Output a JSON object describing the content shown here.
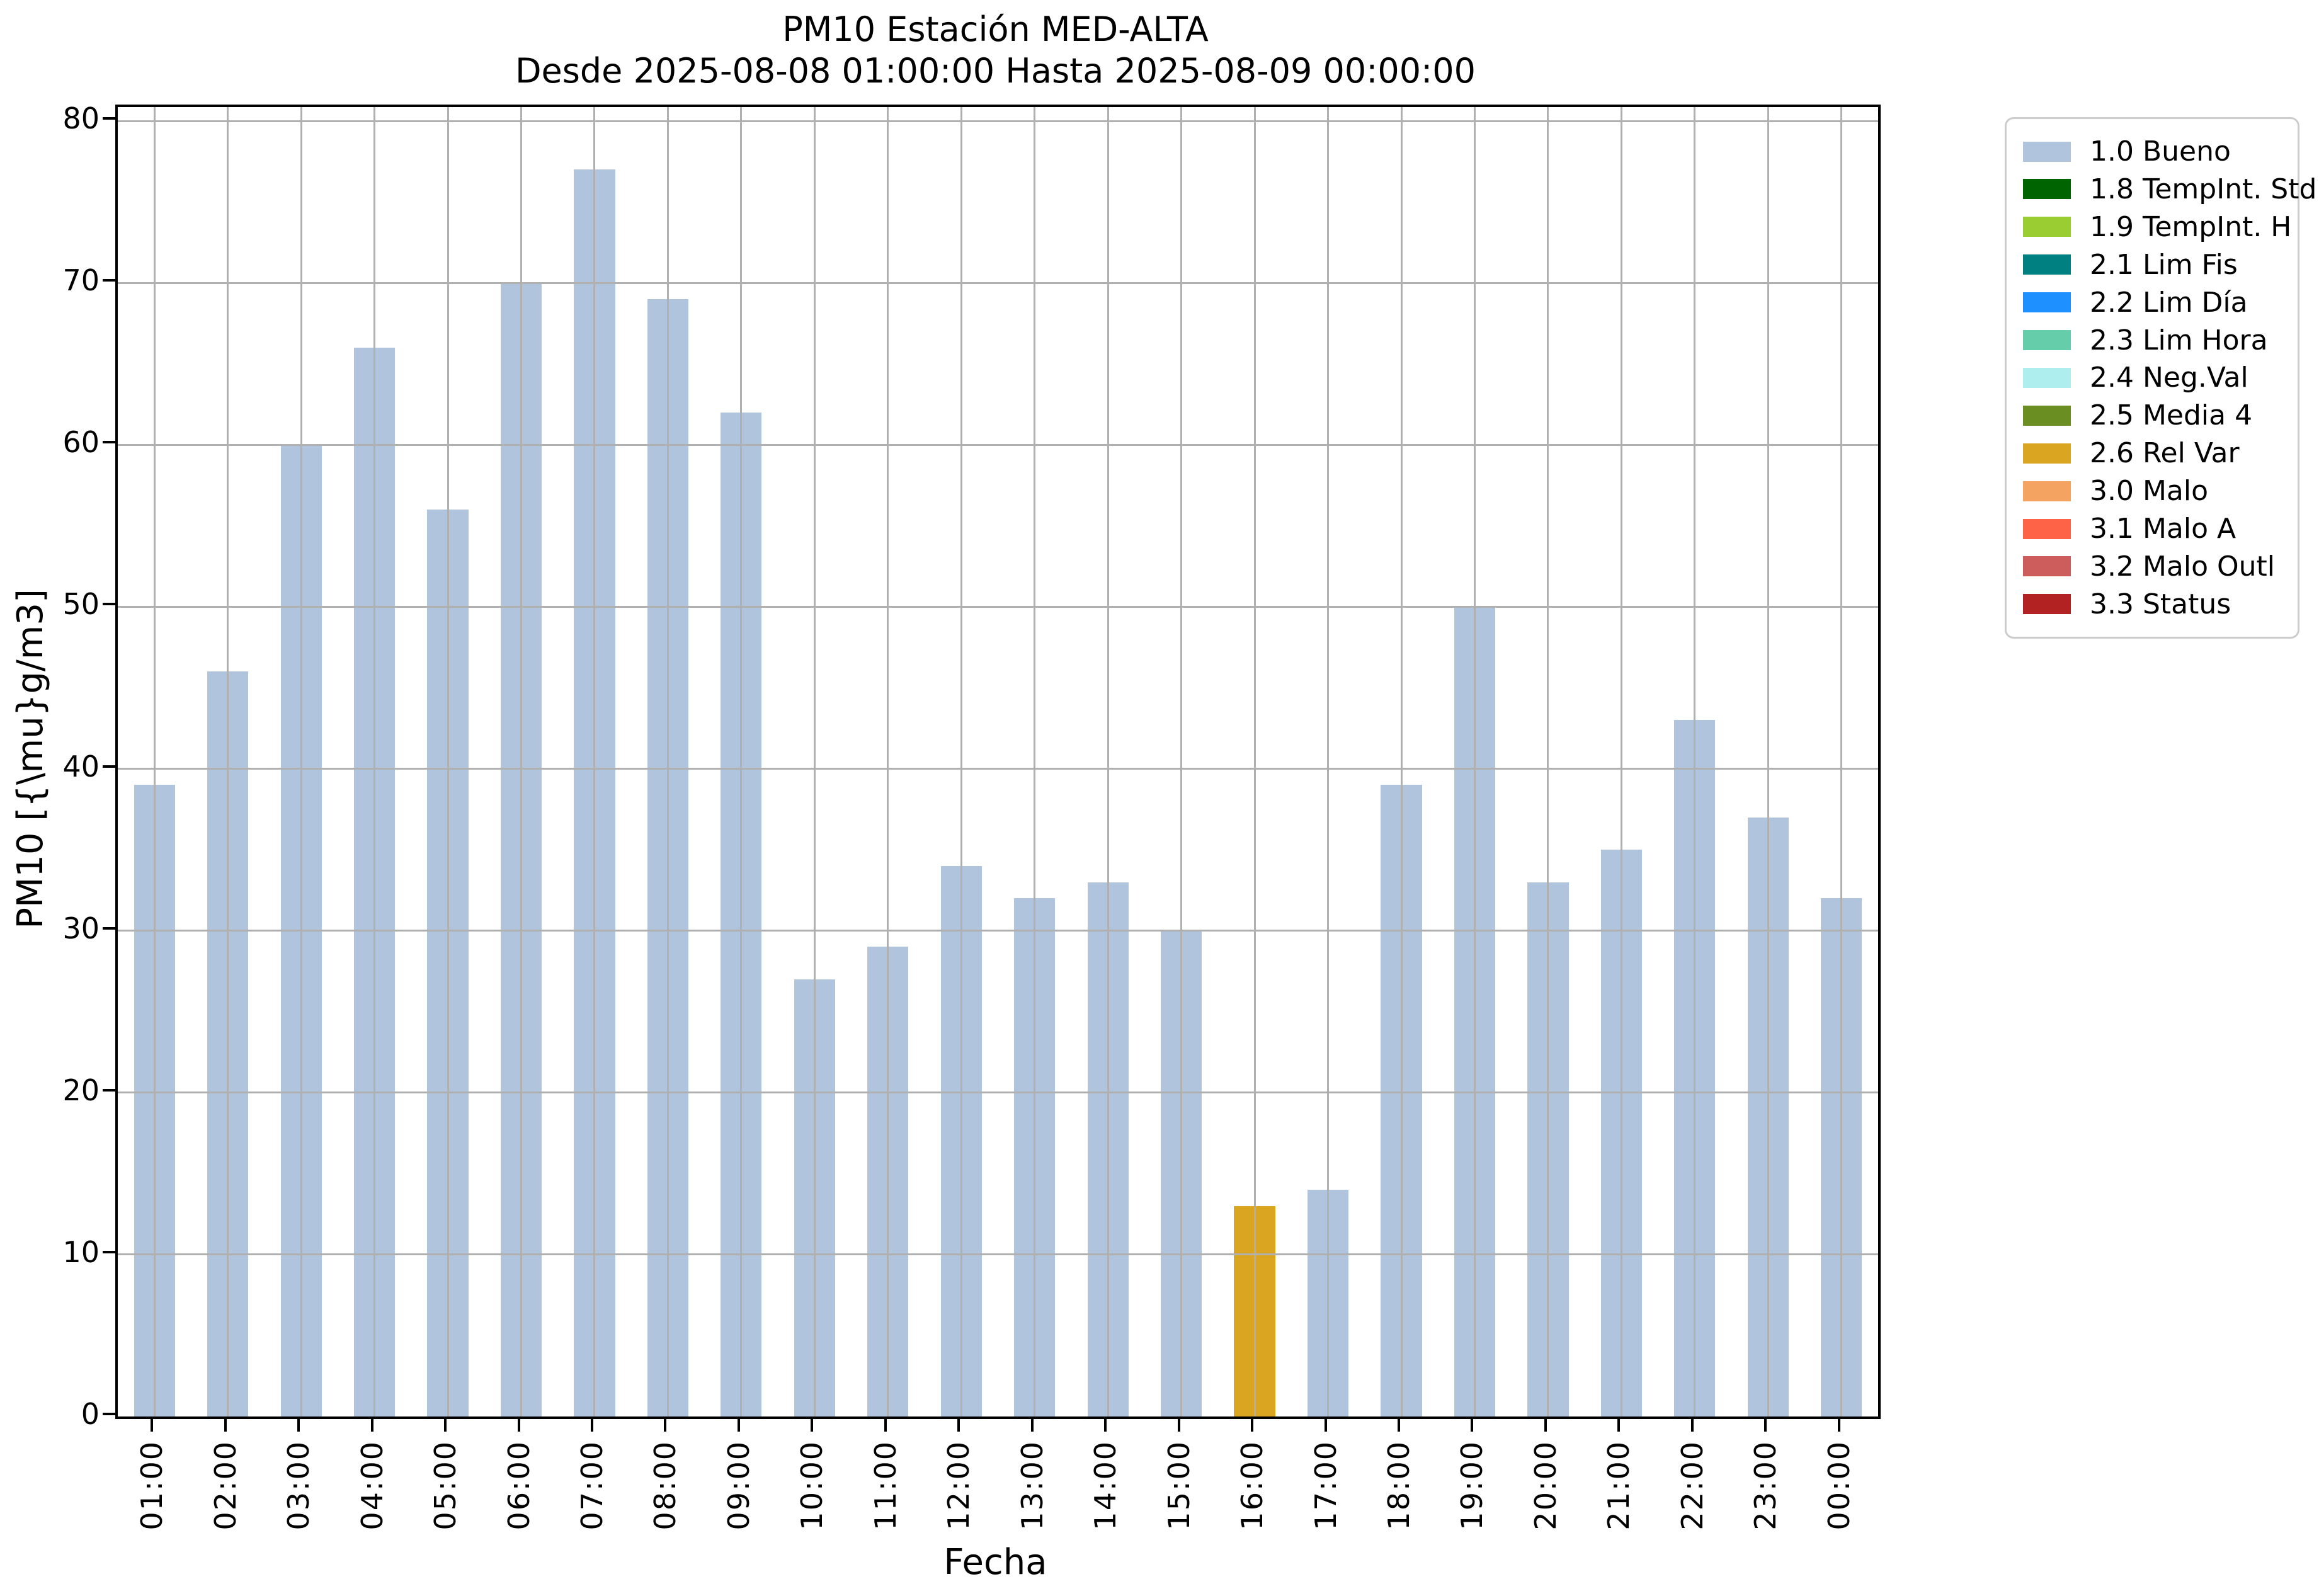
{
  "figure": {
    "title": "PM10 Estación MED-ALTA",
    "subtitle": "Desde 2025-08-08 01:00:00 Hasta 2025-08-09 00:00:00",
    "xlabel": "Fecha",
    "ylabel": "PM10 [{\\mu}g/m3]"
  },
  "chart_data": {
    "type": "bar",
    "title": "PM10 Estación MED-ALTA",
    "subtitle": "Desde 2025-08-08 01:00:00 Hasta 2025-08-09 00:00:00",
    "xlabel": "Fecha",
    "ylabel": "PM10 [{\\mu}g/m3]",
    "categories": [
      "01:00",
      "02:00",
      "03:00",
      "04:00",
      "05:00",
      "06:00",
      "07:00",
      "08:00",
      "09:00",
      "10:00",
      "11:00",
      "12:00",
      "13:00",
      "14:00",
      "15:00",
      "16:00",
      "17:00",
      "18:00",
      "19:00",
      "20:00",
      "21:00",
      "22:00",
      "23:00",
      "00:00"
    ],
    "values": [
      39,
      46,
      60,
      66,
      56,
      70,
      77,
      69,
      62,
      27,
      29,
      34,
      32,
      33,
      30,
      13,
      14,
      39,
      50,
      33,
      35,
      43,
      37,
      32
    ],
    "bar_status": [
      "1.0 Bueno",
      "1.0 Bueno",
      "1.0 Bueno",
      "1.0 Bueno",
      "1.0 Bueno",
      "1.0 Bueno",
      "1.0 Bueno",
      "1.0 Bueno",
      "1.0 Bueno",
      "1.0 Bueno",
      "1.0 Bueno",
      "1.0 Bueno",
      "1.0 Bueno",
      "1.0 Bueno",
      "1.0 Bueno",
      "2.6 Rel Var",
      "1.0 Bueno",
      "1.0 Bueno",
      "1.0 Bueno",
      "1.0 Bueno",
      "1.0 Bueno",
      "1.0 Bueno",
      "1.0 Bueno",
      "1.0 Bueno"
    ],
    "status_colors": {
      "1.0 Bueno": "#b0c4de",
      "1.8 TempInt. Std": "#006400",
      "1.9 TempInt. H": "#9acd32",
      "2.1 Lim Fis": "#008080",
      "2.2 Lim Día": "#1e90ff",
      "2.3 Lim Hora": "#66cdaa",
      "2.4 Neg.Val": "#afeeee",
      "2.5 Media 4": "#6b8e23",
      "2.6 Rel Var": "#daa520",
      "3.0 Malo": "#f4a460",
      "3.1 Malo A": "#ff6347",
      "3.2 Malo Outl": "#cd5c5c",
      "3.3 Status": "#b22222"
    },
    "legend": [
      {
        "label": "1.0 Bueno",
        "color": "#b0c4de"
      },
      {
        "label": "1.8 TempInt. Std",
        "color": "#006400"
      },
      {
        "label": "1.9 TempInt. H",
        "color": "#9acd32"
      },
      {
        "label": "2.1 Lim Fis",
        "color": "#008080"
      },
      {
        "label": "2.2 Lim Día",
        "color": "#1e90ff"
      },
      {
        "label": "2.3 Lim Hora",
        "color": "#66cdaa"
      },
      {
        "label": "2.4 Neg.Val",
        "color": "#afeeee"
      },
      {
        "label": "2.5 Media 4",
        "color": "#6b8e23"
      },
      {
        "label": "2.6 Rel Var",
        "color": "#daa520"
      },
      {
        "label": "3.0 Malo",
        "color": "#f4a460"
      },
      {
        "label": "3.1 Malo A",
        "color": "#ff6347"
      },
      {
        "label": "3.2 Malo Outl",
        "color": "#cd5c5c"
      },
      {
        "label": "3.3 Status",
        "color": "#b22222"
      }
    ],
    "ylim": [
      0,
      80
    ],
    "yticks": [
      0,
      10,
      20,
      30,
      40,
      50,
      60,
      70,
      80
    ],
    "grid": true,
    "grid_color": "#b0b0b0",
    "legend_position": "outside upper right"
  }
}
